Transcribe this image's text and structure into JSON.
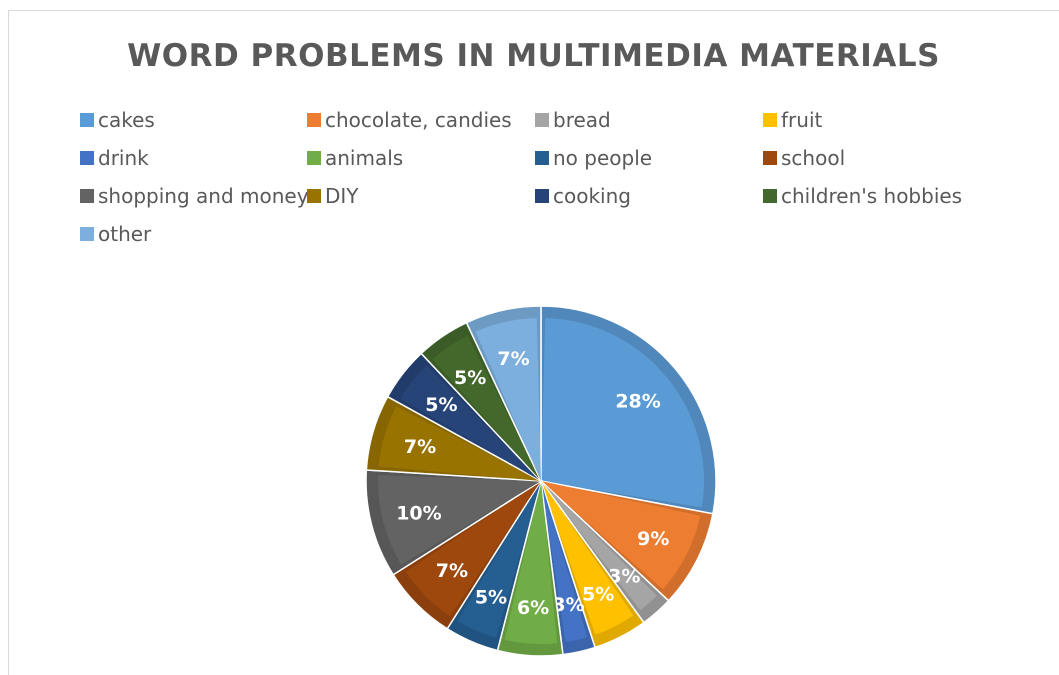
{
  "chart_data": {
    "type": "pie",
    "title": "WORD PROBLEMS IN MULTIMEDIA MATERIALS",
    "legend_position": "top",
    "slices": [
      {
        "label": "cakes",
        "value": 28,
        "display": "28%",
        "color": "#5b9bd5"
      },
      {
        "label": "chocolate, candies",
        "value": 9,
        "display": "9%",
        "color": "#ed7d31"
      },
      {
        "label": "bread",
        "value": 3,
        "display": "3%",
        "color": "#a5a5a5"
      },
      {
        "label": "fruit",
        "value": 5,
        "display": "5%",
        "color": "#ffc000"
      },
      {
        "label": "drink",
        "value": 3,
        "display": "3%",
        "color": "#4472c4"
      },
      {
        "label": "animals",
        "value": 6,
        "display": "6%",
        "color": "#70ad47"
      },
      {
        "label": "no people",
        "value": 5,
        "display": "5%",
        "color": "#255e91"
      },
      {
        "label": "school",
        "value": 7,
        "display": "7%",
        "color": "#9e480e"
      },
      {
        "label": "shopping and money",
        "value": 10,
        "display": "10%",
        "color": "#636363"
      },
      {
        "label": "DIY",
        "value": 7,
        "display": "7%",
        "color": "#997300"
      },
      {
        "label": "cooking",
        "value": 5,
        "display": "5%",
        "color": "#264478"
      },
      {
        "label": "children's hobbies",
        "value": 5,
        "display": "5%",
        "color": "#43682b"
      },
      {
        "label": "other",
        "value": 7,
        "display": "7%",
        "color": "#7cafdd"
      }
    ]
  }
}
